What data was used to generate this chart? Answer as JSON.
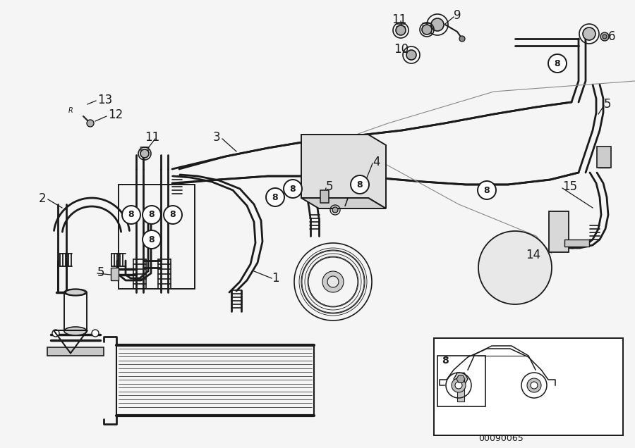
{
  "bg_color": "#f5f5f5",
  "line_color": "#1a1a1a",
  "fig_width": 9.0,
  "fig_height": 6.36,
  "diagram_code": "00090065"
}
